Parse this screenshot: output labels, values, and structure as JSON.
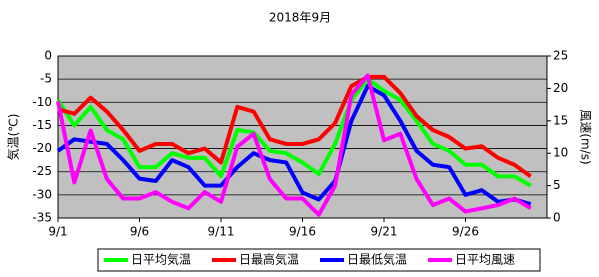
{
  "chart_data": {
    "type": "line",
    "title": "2018年9月",
    "ylabel": "気温(℃)",
    "y2label": "風速(m/s)",
    "x": [
      1,
      2,
      3,
      4,
      5,
      6,
      7,
      8,
      9,
      10,
      11,
      12,
      13,
      14,
      15,
      16,
      17,
      18,
      19,
      20,
      21,
      22,
      23,
      24,
      25,
      26,
      27,
      28,
      29,
      30
    ],
    "xlim": [
      1,
      31
    ],
    "xticks": [
      {
        "value": 1,
        "label": "9/1"
      },
      {
        "value": 6,
        "label": "9/6"
      },
      {
        "value": 11,
        "label": "9/11"
      },
      {
        "value": 16,
        "label": "9/16"
      },
      {
        "value": 21,
        "label": "9/21"
      },
      {
        "value": 26,
        "label": "9/26"
      }
    ],
    "ylim": [
      -35,
      0
    ],
    "yticks": [
      -35,
      -30,
      -25,
      -20,
      -15,
      -10,
      -5,
      0
    ],
    "y2lim": [
      0,
      25
    ],
    "y2ticks": [
      0,
      5,
      10,
      15,
      20,
      25
    ],
    "grid": true,
    "background": "#c0c0c0",
    "legend": "bottom",
    "series": [
      {
        "name": "日平均気温",
        "color": "#00ff00",
        "values": [
          -9.5,
          -15,
          -11,
          -16,
          -18,
          -24,
          -24,
          -21,
          -22,
          -22,
          -26,
          -16,
          -16.5,
          -20.5,
          -21,
          -23,
          -25.5,
          -19,
          -9.5,
          -5,
          -7.5,
          -9.5,
          -14,
          -19,
          -20.5,
          -23.5,
          -23.5,
          -26,
          -26,
          -28
        ]
      },
      {
        "name": "日最高気温",
        "color": "#ff0000",
        "values": [
          -11.5,
          -12.5,
          -9,
          -12,
          -16,
          -20.5,
          -19,
          -19,
          -21,
          -20,
          -23,
          -11,
          -12,
          -18,
          -19,
          -19,
          -18,
          -14.5,
          -6.5,
          -4.5,
          -4.5,
          -8,
          -13,
          -16,
          -17.5,
          -20,
          -19.5,
          -22,
          -23.5,
          -26
        ]
      },
      {
        "name": "日最低気温",
        "color": "#0000ff",
        "values": [
          -20.5,
          -18,
          -18.5,
          -19,
          -22.5,
          -26.5,
          -27,
          -22.5,
          -24,
          -28,
          -28,
          -24,
          -21,
          -22.5,
          -23,
          -29.5,
          -31,
          -27,
          -14,
          -6.5,
          -8.5,
          -14,
          -20.5,
          -23.5,
          -24,
          -30,
          -29,
          -31.5,
          -31,
          -32
        ]
      },
      {
        "name": "日平均風速",
        "color": "#ff00ff",
        "axis": "y2",
        "values": [
          18,
          5.5,
          13.5,
          6,
          3,
          3,
          4,
          2.5,
          1.5,
          4,
          2.5,
          11,
          13,
          6,
          3,
          3,
          0.5,
          5,
          19,
          22,
          12,
          13,
          6,
          2,
          3,
          1,
          1.5,
          2,
          3,
          1.5
        ]
      }
    ]
  }
}
